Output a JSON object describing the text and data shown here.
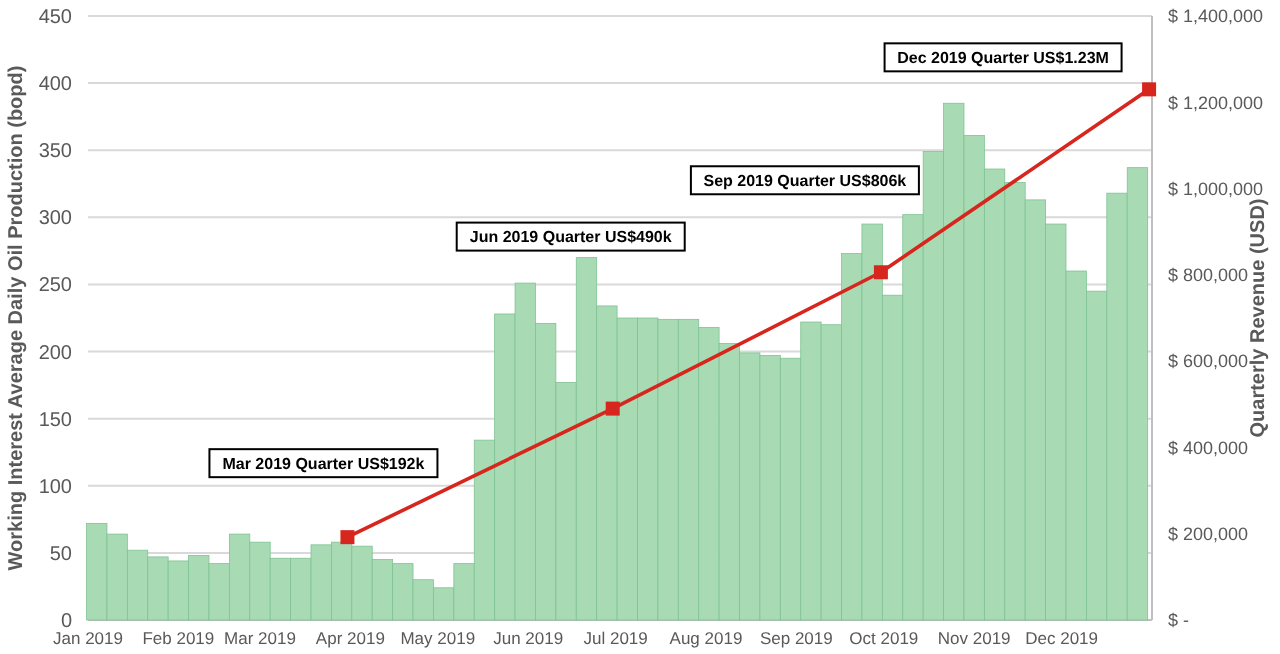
{
  "chart_data": {
    "type": "bar",
    "ylabel": "Working Interest Average Daily Oil Production (bopd)",
    "y2label": "Quarterly Revenue (USD)",
    "x": [
      "2019-01-04",
      "2019-01-11",
      "2019-01-18",
      "2019-01-25",
      "2019-02-01",
      "2019-02-08",
      "2019-02-15",
      "2019-02-22",
      "2019-03-01",
      "2019-03-08",
      "2019-03-15",
      "2019-03-22",
      "2019-03-29",
      "2019-04-05",
      "2019-04-12",
      "2019-04-19",
      "2019-04-26",
      "2019-05-03",
      "2019-05-10",
      "2019-05-17",
      "2019-05-24",
      "2019-05-31",
      "2019-06-07",
      "2019-06-14",
      "2019-06-21",
      "2019-06-28",
      "2019-07-05",
      "2019-07-12",
      "2019-07-19",
      "2019-07-26",
      "2019-08-02",
      "2019-08-09",
      "2019-08-16",
      "2019-08-23",
      "2019-08-30",
      "2019-09-06",
      "2019-09-13",
      "2019-09-20",
      "2019-09-27",
      "2019-10-04",
      "2019-10-11",
      "2019-10-18",
      "2019-10-25",
      "2019-11-01",
      "2019-11-08",
      "2019-11-15",
      "2019-11-22",
      "2019-11-29",
      "2019-12-06",
      "2019-12-13",
      "2019-12-20",
      "2019-12-27"
    ],
    "series": [
      {
        "color": "#a8dbb4",
        "values": [
          72,
          64,
          52,
          47,
          44,
          48,
          42,
          64,
          58,
          46,
          46,
          56,
          58,
          55,
          45,
          42,
          30,
          24,
          42,
          134,
          228,
          251,
          221,
          177,
          270,
          234,
          225,
          225,
          224,
          224,
          218,
          206,
          199,
          197,
          195,
          222,
          220,
          273,
          295,
          242,
          302,
          349,
          385,
          361,
          336,
          326,
          313,
          295,
          260,
          245,
          318,
          337
        ]
      },
      {
        "type": "line",
        "axis": "y2",
        "color": "#d7261e",
        "marker": "square",
        "x": [
          "2019-03-31",
          "2019-06-30",
          "2019-09-30",
          "2019-12-31"
        ],
        "values": [
          192000,
          490000,
          806000,
          1230000
        ]
      }
    ],
    "xlim": [
      "2019-01-01",
      "2020-01-01"
    ],
    "xticks": [
      {
        "value": "2019-01-01",
        "label": "Jan 2019"
      },
      {
        "value": "2019-02-01",
        "label": "Feb 2019"
      },
      {
        "value": "2019-03-01",
        "label": "Mar 2019"
      },
      {
        "value": "2019-04-01",
        "label": "Apr 2019"
      },
      {
        "value": "2019-05-01",
        "label": "May 2019"
      },
      {
        "value": "2019-06-01",
        "label": "Jun 2019"
      },
      {
        "value": "2019-07-01",
        "label": "Jul 2019"
      },
      {
        "value": "2019-08-01",
        "label": "Aug 2019"
      },
      {
        "value": "2019-09-01",
        "label": "Sep 2019"
      },
      {
        "value": "2019-10-01",
        "label": "Oct 2019"
      },
      {
        "value": "2019-11-01",
        "label": "Nov 2019"
      },
      {
        "value": "2019-12-01",
        "label": "Dec 2019"
      }
    ],
    "ylim": [
      0,
      450
    ],
    "yticks": [
      0,
      50,
      100,
      150,
      200,
      250,
      300,
      350,
      400,
      450
    ],
    "y2lim": [
      0,
      1400000
    ],
    "y2ticks": [
      {
        "value": 0,
        "label": "$ -"
      },
      {
        "value": 200000,
        "label": "$ 200,000"
      },
      {
        "value": 400000,
        "label": "$ 400,000"
      },
      {
        "value": 600000,
        "label": "$ 600,000"
      },
      {
        "value": 800000,
        "label": "$ 800,000"
      },
      {
        "value": 1000000,
        "label": "$ 1,000,000"
      },
      {
        "value": 1200000,
        "label": "$ 1,200,000"
      },
      {
        "value": 1400000,
        "label": "$ 1,400,000"
      }
    ],
    "grid": "y",
    "annotations": [
      "Mar 2019 Quarter US$192k",
      "Jun 2019 Quarter US$490k",
      "Sep 2019 Quarter US$806k",
      "Dec 2019 Quarter US$1.23M"
    ]
  }
}
